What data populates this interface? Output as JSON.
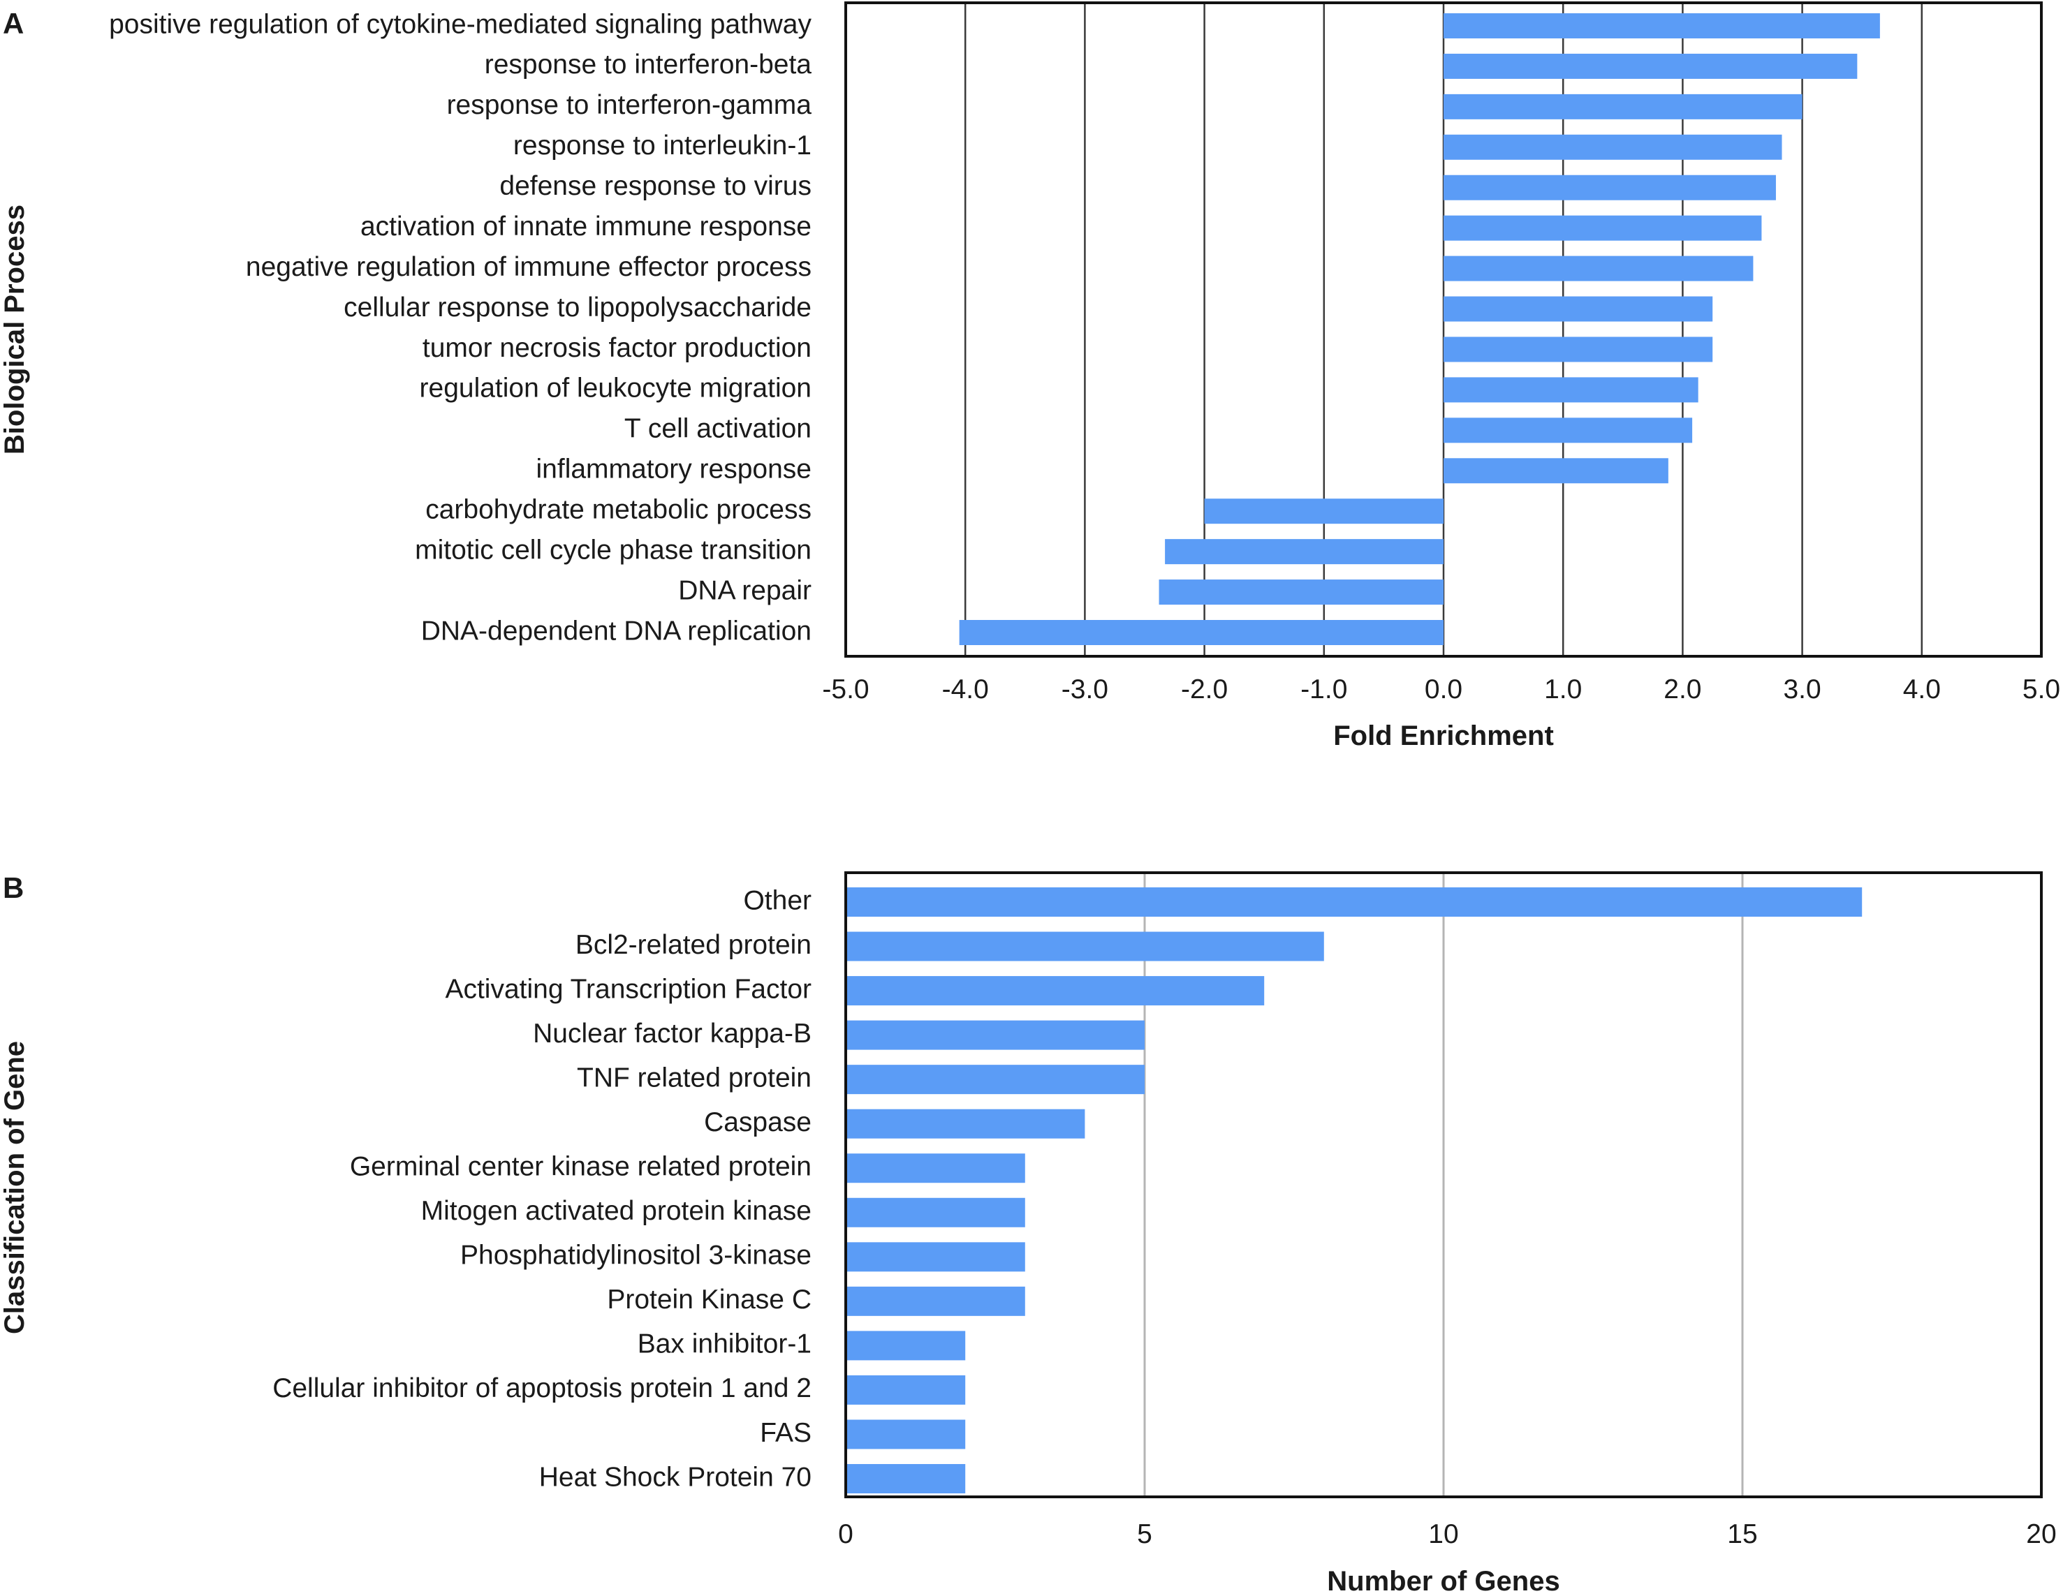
{
  "chart_data": [
    {
      "panel": "A",
      "type": "bar",
      "orientation": "horizontal",
      "xlabel": "Fold Enrichment",
      "ylabel": "Biological Process",
      "xlim": [
        -5.0,
        5.0
      ],
      "ticks": [
        -5,
        -4,
        -3,
        -2,
        -1,
        0,
        1,
        2,
        3,
        4,
        5
      ],
      "tick_labels": [
        "-5.0",
        "-4.0",
        "-3.0",
        "-2.0",
        "-1.0",
        "0.0",
        "1.0",
        "2.0",
        "3.0",
        "4.0",
        "5.0"
      ],
      "grid": true,
      "bar_color": "#5b9cf6",
      "categories": [
        "positive regulation of cytokine-mediated signaling pathway",
        "response to interferon-beta",
        "response to interferon-gamma",
        "response to interleukin-1",
        "defense response to virus",
        "activation of innate immune response",
        "negative regulation of immune effector process",
        "cellular response to lipopolysaccharide",
        "tumor necrosis factor production",
        "regulation of leukocyte migration",
        "T cell activation",
        "inflammatory response",
        "carbohydrate metabolic process",
        "mitotic cell cycle phase transition",
        "DNA repair",
        "DNA-dependent DNA replication"
      ],
      "values": [
        3.65,
        3.46,
        3.0,
        2.83,
        2.78,
        2.66,
        2.59,
        2.25,
        2.25,
        2.13,
        2.08,
        1.88,
        -2.0,
        -2.33,
        -2.38,
        -4.05
      ]
    },
    {
      "panel": "B",
      "type": "bar",
      "orientation": "horizontal",
      "xlabel": "Number of Genes",
      "ylabel": "Classification of Gene",
      "xlim": [
        0,
        20
      ],
      "ticks": [
        0,
        5,
        10,
        15,
        20
      ],
      "tick_labels": [
        "0",
        "5",
        "10",
        "15",
        "20"
      ],
      "grid": true,
      "bar_color": "#5b9cf6",
      "categories": [
        "Other",
        "Bcl2-related protein",
        "Activating Transcription Factor",
        "Nuclear factor kappa-B",
        "TNF related protein",
        "Caspase",
        "Germinal center kinase related protein",
        "Mitogen activated protein kinase",
        "Phosphatidylinositol 3-kinase",
        "Protein Kinase C",
        "Bax inhibitor-1",
        "Cellular inhibitor of apoptosis protein 1 and 2",
        "FAS",
        "Heat Shock Protein 70"
      ],
      "values": [
        17,
        8,
        7,
        5,
        5,
        4,
        3,
        3,
        3,
        3,
        2,
        2,
        2,
        2
      ]
    }
  ]
}
